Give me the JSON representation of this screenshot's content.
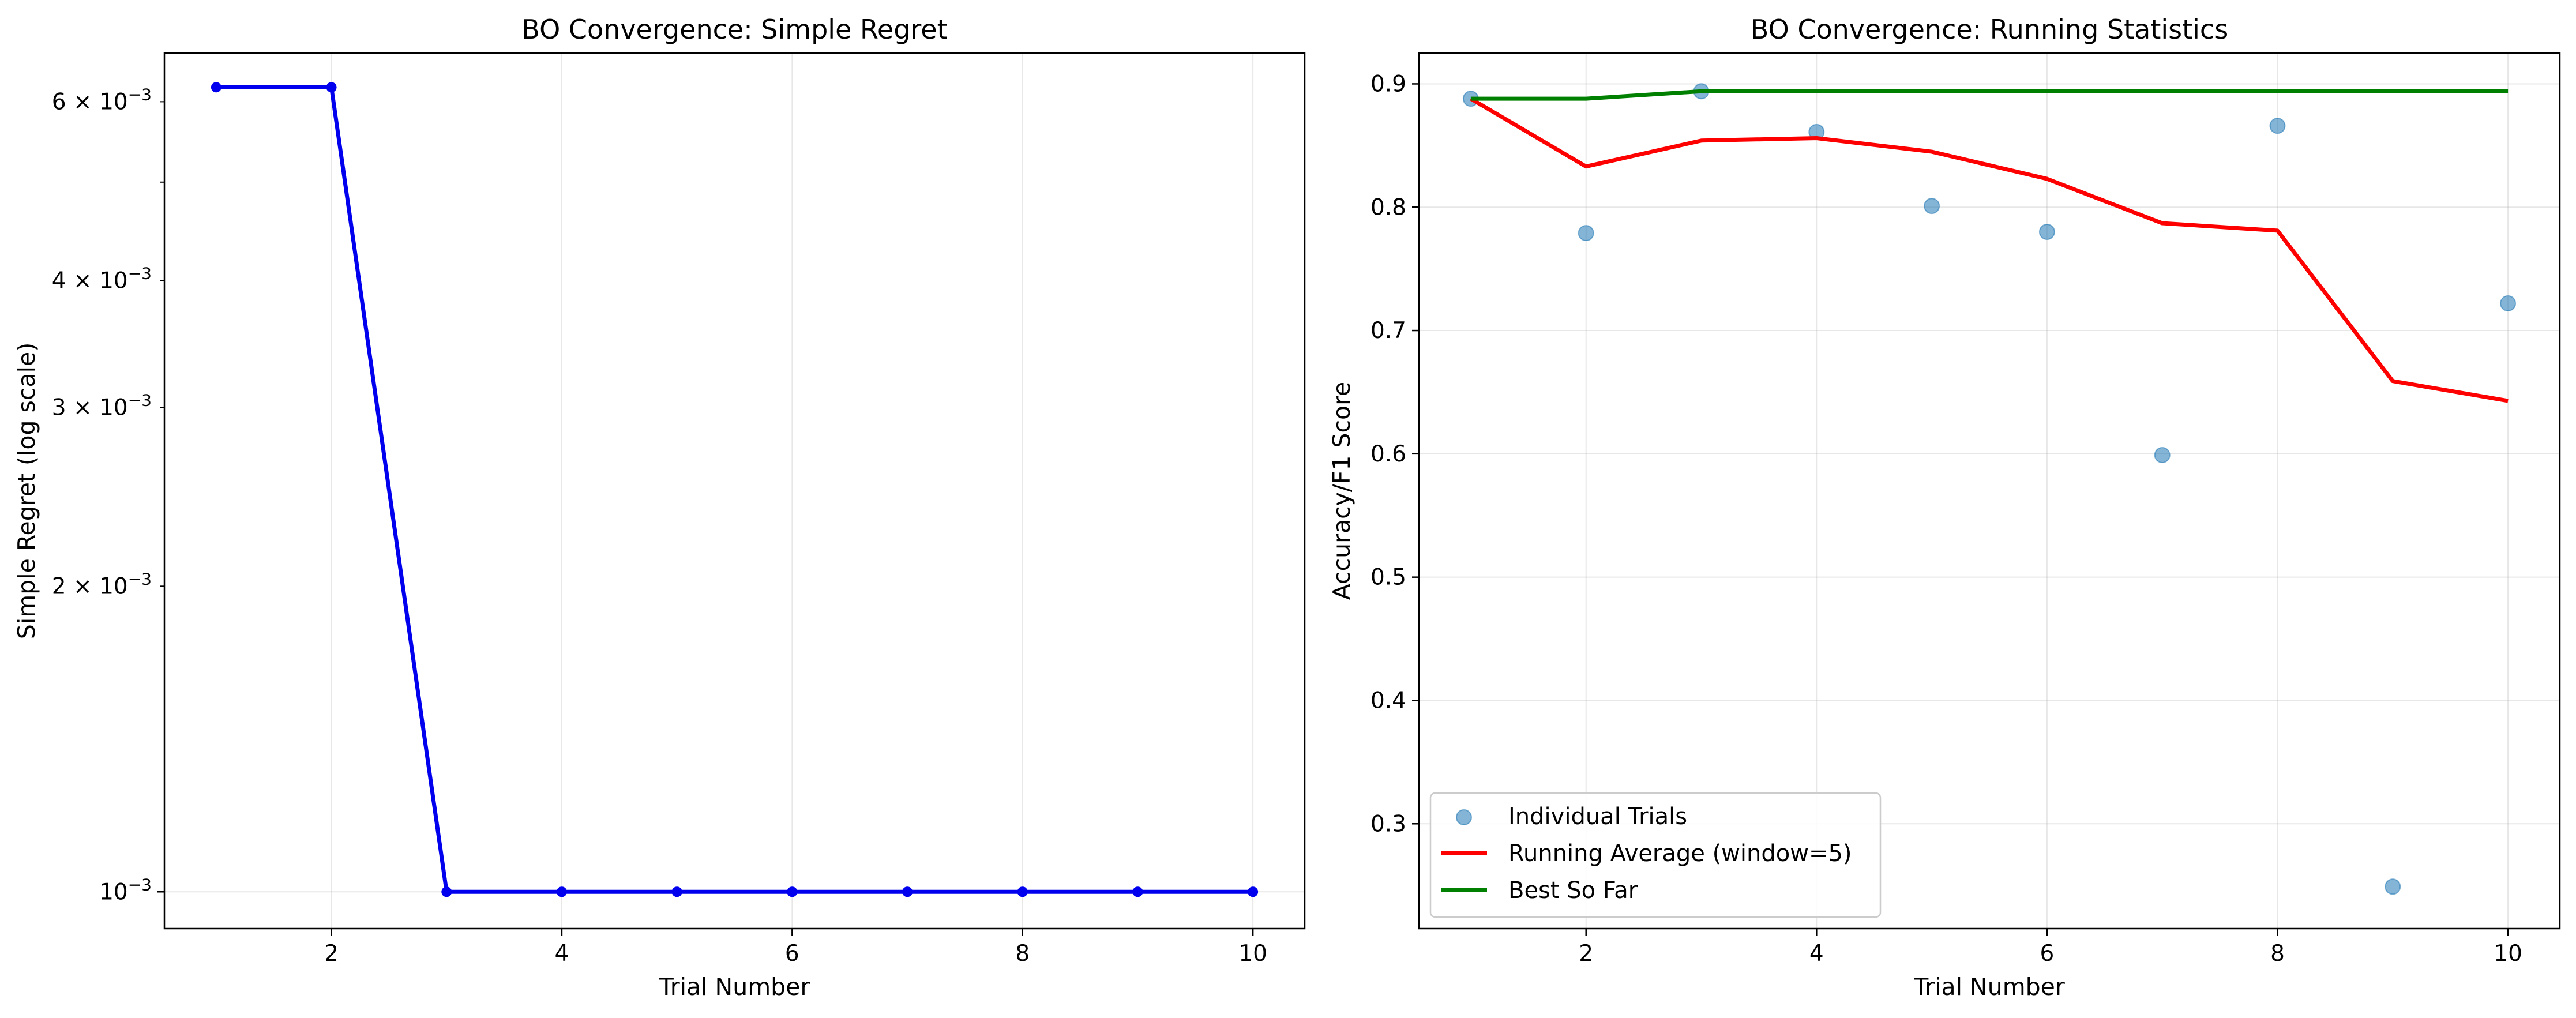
{
  "chart_data": [
    {
      "type": "line",
      "title": "BO Convergence: Simple Regret",
      "xlabel": "Trial Number",
      "ylabel": "Simple Regret (log scale)",
      "yscale": "log",
      "xlim": [
        0.55,
        10.45
      ],
      "ylim": [
        0.00092,
        0.0067
      ],
      "grid": true,
      "x_ticks": [
        2,
        4,
        6,
        8,
        10
      ],
      "y_major_ticks": [
        {
          "value": 0.001,
          "mantissa": "",
          "exp": "−3"
        }
      ],
      "y_minor_ticks": [
        {
          "value": 0.002,
          "mantissa": "2",
          "exp": "−3"
        },
        {
          "value": 0.003,
          "mantissa": "3",
          "exp": "−3"
        },
        {
          "value": 0.004,
          "mantissa": "4",
          "exp": "−3"
        },
        {
          "value": 0.005,
          "mantissa": "",
          "exp": ""
        },
        {
          "value": 0.006,
          "mantissa": "6",
          "exp": "−3"
        }
      ],
      "series": [
        {
          "color": "#0000ee",
          "marker": "circle",
          "x": [
            1,
            2,
            3,
            4,
            5,
            6,
            7,
            8,
            9,
            10
          ],
          "y": [
            0.0062,
            0.0062,
            0.001,
            0.001,
            0.001,
            0.001,
            0.001,
            0.001,
            0.001,
            0.001
          ]
        }
      ]
    },
    {
      "type": "line",
      "title": "BO Convergence: Running Statistics",
      "xlabel": "Trial Number",
      "ylabel": "Accuracy/F1 Score",
      "xlim": [
        0.55,
        10.45
      ],
      "ylim": [
        0.215,
        0.925
      ],
      "grid": true,
      "legend_position": "lower-left",
      "x_ticks": [
        2,
        4,
        6,
        8,
        10
      ],
      "y_ticks": [
        0.3,
        0.4,
        0.5,
        0.6,
        0.7,
        0.8,
        0.9
      ],
      "y_tick_labels": [
        "0.3",
        "0.4",
        "0.5",
        "0.6",
        "0.7",
        "0.8",
        "0.9"
      ],
      "series": [
        {
          "name": "Individual Trials",
          "kind": "scatter",
          "color": "#1f77b4",
          "x": [
            1,
            2,
            3,
            4,
            5,
            6,
            7,
            8,
            9,
            10
          ],
          "y": [
            0.888,
            0.779,
            0.894,
            0.861,
            0.801,
            0.78,
            0.599,
            0.866,
            0.249,
            0.722
          ]
        },
        {
          "name": "Running Average (window=5)",
          "kind": "line",
          "color": "#ff0000",
          "x": [
            1,
            2,
            3,
            4,
            5,
            6,
            7,
            8,
            9,
            10
          ],
          "y": [
            0.888,
            0.833,
            0.854,
            0.856,
            0.845,
            0.823,
            0.787,
            0.781,
            0.659,
            0.643
          ]
        },
        {
          "name": "Best So Far",
          "kind": "line",
          "color": "#008000",
          "x": [
            1,
            2,
            3,
            4,
            5,
            6,
            7,
            8,
            9,
            10
          ],
          "y": [
            0.888,
            0.888,
            0.894,
            0.894,
            0.894,
            0.894,
            0.894,
            0.894,
            0.894,
            0.894
          ]
        }
      ]
    }
  ]
}
